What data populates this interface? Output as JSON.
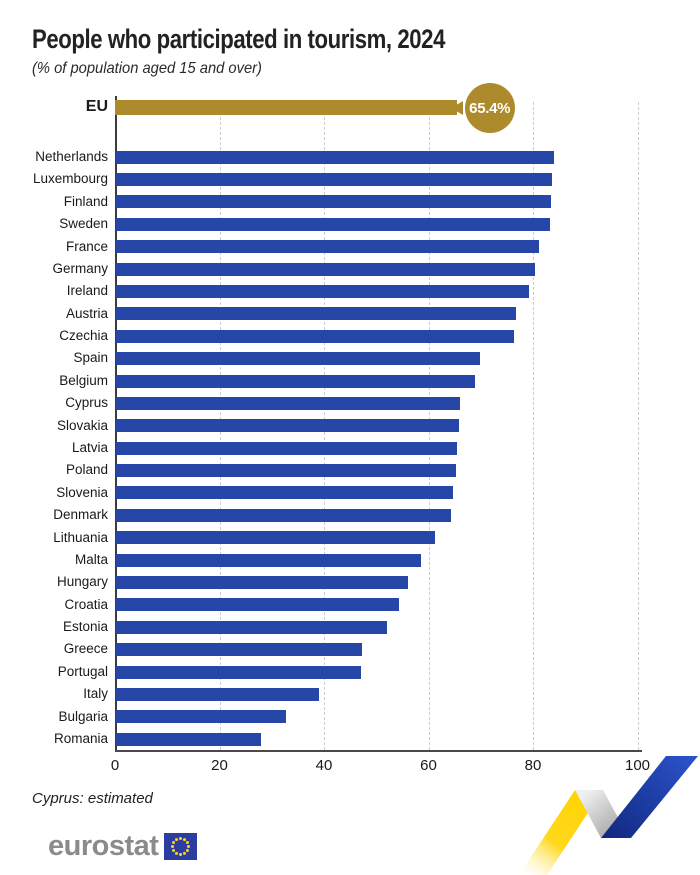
{
  "title": "People who participated in tourism, 2024",
  "subtitle": "(% of population aged 15 and over)",
  "footnote": "Cyprus: estimated",
  "logo": {
    "text": "eurostat",
    "flag_icon": "eu-flag-icon"
  },
  "colors": {
    "eu_bar": "#AD8B2C",
    "country_bar": "#2747A8",
    "badge_text": "#FFFFFF",
    "grid": "#CCCCCC",
    "logo_gray": "#8B8B8B",
    "flag_blue": "#2B3EA0",
    "star_yellow": "#FFD617",
    "ribbon_yellow": "#FFD400",
    "ribbon_gray": "#B9B9B9",
    "ribbon_blue": "#1D3FAF"
  },
  "chart_data": {
    "type": "bar",
    "orientation": "horizontal",
    "title": "People who participated in tourism, 2024",
    "subtitle": "(% of population aged 15 and over)",
    "xlabel": "",
    "ylabel": "",
    "xlim": [
      0,
      100
    ],
    "grid": "vertical-dashed",
    "axis_ticks": [
      0,
      20,
      40,
      60,
      80,
      100
    ],
    "eu": {
      "label": "EU",
      "value": 65.4,
      "value_label": "65.4%"
    },
    "categories": [
      "Netherlands",
      "Luxembourg",
      "Finland",
      "Sweden",
      "France",
      "Germany",
      "Ireland",
      "Austria",
      "Czechia",
      "Spain",
      "Belgium",
      "Cyprus",
      "Slovakia",
      "Latvia",
      "Poland",
      "Slovenia",
      "Denmark",
      "Lithuania",
      "Malta",
      "Hungary",
      "Croatia",
      "Estonia",
      "Greece",
      "Portugal",
      "Italy",
      "Bulgaria",
      "Romania"
    ],
    "values": [
      84.0,
      83.5,
      83.4,
      83.1,
      81.0,
      80.2,
      79.2,
      76.6,
      76.2,
      69.8,
      68.8,
      66.0,
      65.7,
      65.4,
      65.1,
      64.6,
      64.2,
      61.2,
      58.4,
      56.0,
      54.2,
      52.0,
      47.1,
      46.9,
      38.9,
      32.6,
      27.8
    ]
  }
}
